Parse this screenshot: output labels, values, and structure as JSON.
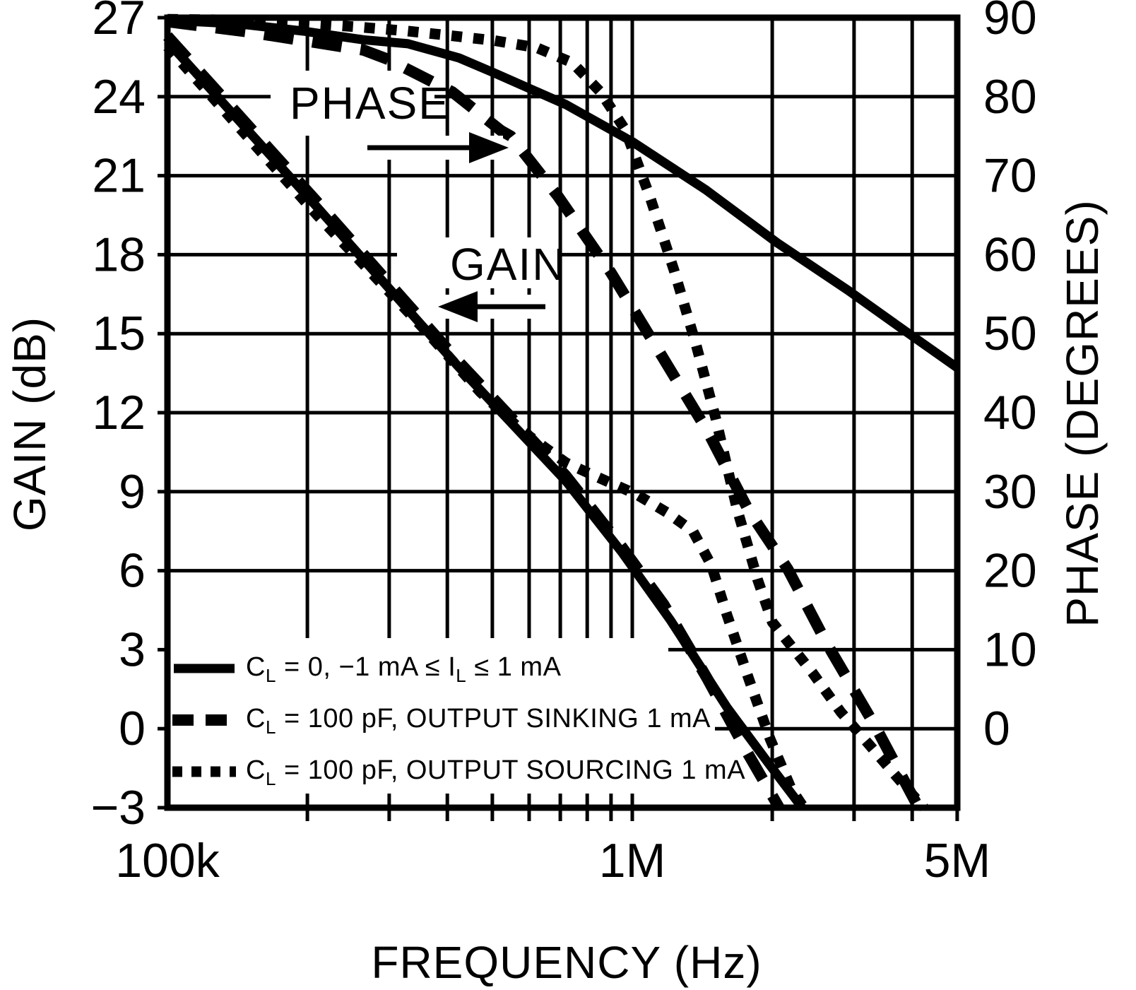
{
  "colors": {
    "foreground": "#000000",
    "background": "#ffffff"
  },
  "axes": {
    "left": {
      "title": "GAIN (dB)",
      "ticks": [
        27,
        24,
        21,
        18,
        15,
        12,
        9,
        6,
        3,
        0,
        -3
      ]
    },
    "right": {
      "title": "PHASE (DEGREES)",
      "ticks": [
        90,
        80,
        70,
        60,
        50,
        40,
        30,
        20,
        10,
        0
      ]
    },
    "bottom": {
      "title": "FREQUENCY (Hz)",
      "ticks": [
        {
          "f": 100000,
          "label": "100k"
        },
        {
          "f": 1000000,
          "label": "1M"
        },
        {
          "f": 5000000,
          "label": "5M"
        }
      ]
    }
  },
  "annotations": {
    "phase_label": "PHASE",
    "gain_label": "GAIN"
  },
  "legend": {
    "items": [
      {
        "style": "solid",
        "parts": [
          "C",
          "L",
          " = 0, −1 mA ≤ I",
          "L",
          " ≤ 1 mA"
        ]
      },
      {
        "style": "dashed",
        "parts": [
          "C",
          "L",
          " = 100 pF, OUTPUT SINKING 1 mA"
        ]
      },
      {
        "style": "dotted",
        "parts": [
          "C",
          "L",
          " = 100 pF, OUTPUT SOURCING 1 mA"
        ]
      }
    ]
  },
  "chart_data": {
    "type": "line",
    "title": "",
    "xlabel": "FREQUENCY (Hz)",
    "x_scale": "log",
    "x_range": [
      100000,
      5000000
    ],
    "left_ylabel": "GAIN (dB)",
    "left_ylim": [
      -3,
      27
    ],
    "right_ylabel": "PHASE (DEGREES)",
    "right_ylim": [
      -10,
      90
    ],
    "grid": true,
    "legend_position": "lower-left-inside",
    "gridlines": {
      "freq": [
        200000,
        300000,
        400000,
        500000,
        600000,
        700000,
        800000,
        900000,
        1000000,
        2000000,
        3000000,
        4000000
      ],
      "gain_db": [
        24,
        21,
        18,
        15,
        12,
        9,
        6,
        3,
        0
      ]
    },
    "series": [
      {
        "name": "gain_cl_0",
        "axis": "gain",
        "style": "solid",
        "label": "CL = 0, -1 mA <= IL <= 1 mA",
        "points": [
          [
            100000,
            26.1
          ],
          [
            210000,
            19.8
          ],
          [
            420000,
            13.8
          ],
          [
            720000,
            9.4
          ],
          [
            950000,
            6.7
          ],
          [
            1210000,
            4.1
          ],
          [
            1600000,
            0.8
          ],
          [
            1980000,
            -1.4
          ],
          [
            2320000,
            -3
          ]
        ]
      },
      {
        "name": "gain_cl_100pF_sinking",
        "axis": "gain",
        "style": "dashed",
        "label": "CL = 100 pF, OUTPUT SINKING 1 mA",
        "points": [
          [
            100000,
            26.3
          ],
          [
            210000,
            20.0
          ],
          [
            420000,
            14.0
          ],
          [
            720000,
            9.6
          ],
          [
            950000,
            6.9
          ],
          [
            1170000,
            4.7
          ],
          [
            1450000,
            1.9
          ],
          [
            1780000,
            -1.0
          ],
          [
            2070000,
            -3
          ]
        ]
      },
      {
        "name": "gain_cl_100pF_sourcing",
        "axis": "gain",
        "style": "dotted",
        "label": "CL = 100 pF, OUTPUT SOURCING 1 mA",
        "points": [
          [
            100000,
            25.9
          ],
          [
            210000,
            19.5
          ],
          [
            360000,
            15.1
          ],
          [
            470000,
            12.8
          ],
          [
            580000,
            11.3
          ],
          [
            720000,
            10.1
          ],
          [
            830000,
            9.6
          ],
          [
            1020000,
            8.9
          ],
          [
            1190000,
            8.2
          ],
          [
            1350000,
            7.5
          ],
          [
            1480000,
            6.2
          ],
          [
            1600000,
            4.3
          ],
          [
            1780000,
            1.9
          ],
          [
            1980000,
            -0.4
          ],
          [
            2200000,
            -2.3
          ],
          [
            2340000,
            -3
          ]
        ]
      },
      {
        "name": "phase_cl_0",
        "axis": "phase",
        "style": "solid",
        "label": "CL = 0, -1 mA <= IL <= 1 mA",
        "points": [
          [
            100000,
            89.7
          ],
          [
            143000,
            89.2
          ],
          [
            196000,
            88.3
          ],
          [
            264000,
            87.2
          ],
          [
            329000,
            86.7
          ],
          [
            424000,
            84.9
          ],
          [
            505000,
            83.0
          ],
          [
            720000,
            79.0
          ],
          [
            1000000,
            74.3
          ],
          [
            1440000,
            68.2
          ],
          [
            2050000,
            61.5
          ],
          [
            2910000,
            55.5
          ],
          [
            3850000,
            50.4
          ],
          [
            5000000,
            45.7
          ]
        ]
      },
      {
        "name": "phase_cl_100pF_sinking",
        "axis": "phase",
        "style": "dashed",
        "label": "CL = 100 pF, OUTPUT SINKING 1 mA",
        "points": [
          [
            100000,
            89.5
          ],
          [
            149000,
            88.2
          ],
          [
            196000,
            87.1
          ],
          [
            264000,
            85.9
          ],
          [
            299000,
            84.7
          ],
          [
            410000,
            80.6
          ],
          [
            522000,
            75.7
          ],
          [
            548000,
            75.0
          ],
          [
            692000,
            67.4
          ],
          [
            900000,
            57.7
          ],
          [
            1130000,
            48.2
          ],
          [
            1450000,
            37.7
          ],
          [
            1780000,
            27.6
          ],
          [
            2160000,
            20.2
          ],
          [
            2620000,
            10.8
          ],
          [
            3340000,
            0.2
          ],
          [
            4130000,
            -10
          ]
        ]
      },
      {
        "name": "phase_cl_100pF_sourcing",
        "axis": "phase",
        "style": "dotted",
        "label": "CL = 100 pF, OUTPUT SOURCING 1 mA",
        "points": [
          [
            100000,
            89.8
          ],
          [
            143000,
            89.7
          ],
          [
            196000,
            89.3
          ],
          [
            260000,
            88.8
          ],
          [
            329000,
            88.3
          ],
          [
            410000,
            87.7
          ],
          [
            505000,
            87.1
          ],
          [
            623000,
            86.2
          ],
          [
            743000,
            84.3
          ],
          [
            854000,
            80.6
          ],
          [
            966000,
            75.8
          ],
          [
            1090000,
            67.4
          ],
          [
            1230000,
            58.0
          ],
          [
            1370000,
            48.7
          ],
          [
            1510000,
            39.4
          ],
          [
            1680000,
            27.8
          ],
          [
            1860000,
            18.9
          ],
          [
            2000000,
            13.5
          ],
          [
            2440000,
            7.1
          ],
          [
            2810000,
            2.1
          ],
          [
            3230000,
            -2.0
          ],
          [
            3720000,
            -6.2
          ],
          [
            4240000,
            -10
          ]
        ]
      }
    ]
  }
}
